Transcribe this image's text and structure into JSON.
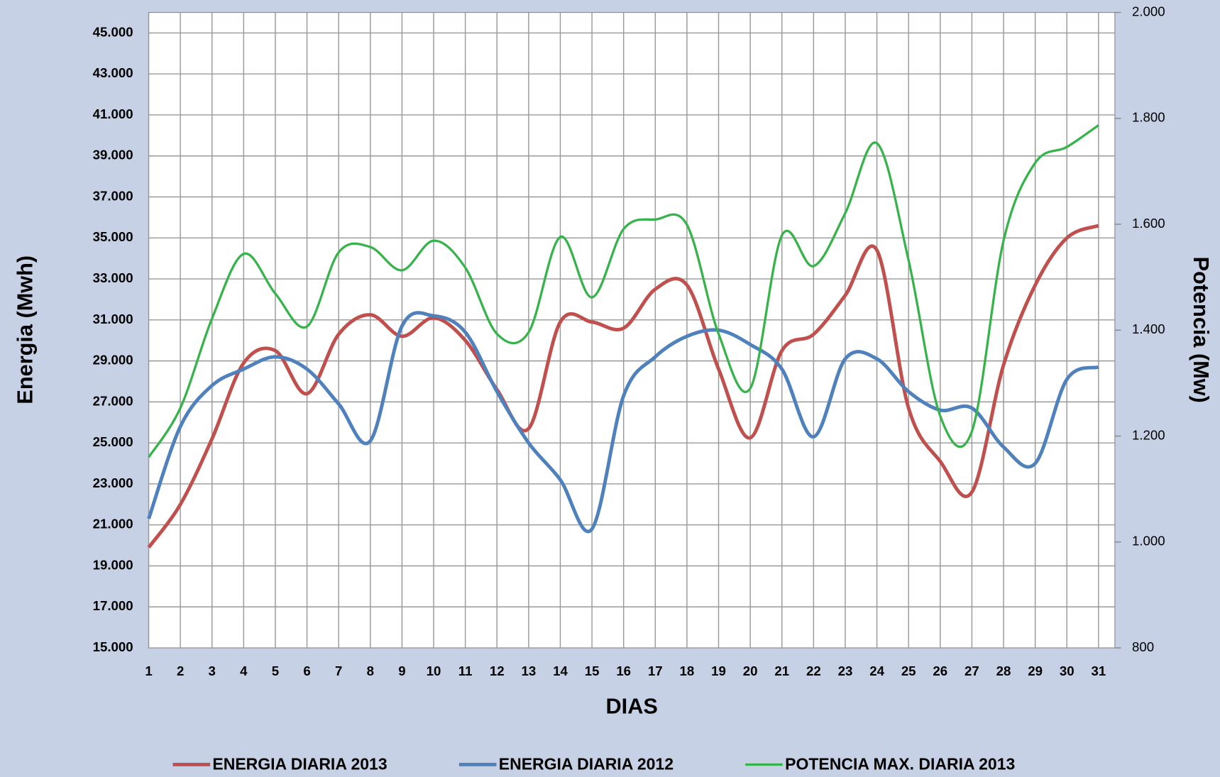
{
  "chart_data": {
    "type": "line",
    "x_label": "DIAS",
    "y_label": "Energia (Mwh)",
    "y2_label": "Potencia (Mw)",
    "categories": [
      "1",
      "2",
      "3",
      "4",
      "5",
      "6",
      "7",
      "8",
      "9",
      "10",
      "11",
      "12",
      "13",
      "14",
      "15",
      "16",
      "17",
      "18",
      "19",
      "20",
      "21",
      "22",
      "23",
      "24",
      "25",
      "26",
      "27",
      "28",
      "29",
      "30",
      "31"
    ],
    "series": [
      {
        "name": "ENERGIA DIARIA 2013",
        "color": "#c0504d",
        "values": [
          19900,
          22000,
          25200,
          28900,
          29500,
          27400,
          30300,
          31250,
          30200,
          31100,
          30000,
          27600,
          25700,
          30900,
          30900,
          30600,
          32500,
          32700,
          28600,
          25250,
          29500,
          30300,
          32200,
          34400,
          26700,
          24100,
          22600,
          28800,
          32700,
          35000,
          35600
        ]
      },
      {
        "name": "ENERGIA DIARIA 2012",
        "color": "#4f81bd",
        "values": [
          21300,
          25800,
          27800,
          28600,
          29200,
          28600,
          26900,
          25100,
          30700,
          31200,
          30400,
          27500,
          25000,
          23200,
          20800,
          27300,
          29200,
          30200,
          30500,
          29800,
          28600,
          25300,
          29100,
          29100,
          27500,
          26600,
          26700,
          24800,
          24000,
          28100,
          28700
        ]
      },
      {
        "name": "POTENCIA MAX. DIARIA 2013",
        "color": "#36b34a",
        "axis": "y2",
        "values": [
          1160,
          1253,
          1422,
          1544,
          1469,
          1407,
          1547,
          1557,
          1513,
          1569,
          1518,
          1393,
          1396,
          1576,
          1462,
          1591,
          1609,
          1599,
          1393,
          1290,
          1579,
          1521,
          1621,
          1753,
          1532,
          1238,
          1209,
          1569,
          1716,
          1746,
          1787
        ]
      }
    ],
    "ylim": [
      15000,
      46000
    ],
    "yticks": [
      {
        "value": 15000,
        "label": "15.000"
      },
      {
        "value": 17000,
        "label": "17.000"
      },
      {
        "value": 19000,
        "label": "19.000"
      },
      {
        "value": 21000,
        "label": "21.000"
      },
      {
        "value": 23000,
        "label": "23.000"
      },
      {
        "value": 25000,
        "label": "25.000"
      },
      {
        "value": 27000,
        "label": "27.000"
      },
      {
        "value": 29000,
        "label": "29.000"
      },
      {
        "value": 31000,
        "label": "31.000"
      },
      {
        "value": 33000,
        "label": "33.000"
      },
      {
        "value": 35000,
        "label": "35.000"
      },
      {
        "value": 37000,
        "label": "37.000"
      },
      {
        "value": 39000,
        "label": "39.000"
      },
      {
        "value": 41000,
        "label": "41.000"
      },
      {
        "value": 43000,
        "label": "43.000"
      },
      {
        "value": 45000,
        "label": "45.000"
      }
    ],
    "y2lim": [
      800,
      2000
    ],
    "y2ticks": [
      800,
      {
        "value": 1000,
        "label": "1.000"
      },
      {
        "value": 1200,
        "label": "1.200"
      },
      {
        "value": 1400,
        "label": "1.400"
      },
      {
        "value": 1600,
        "label": "1.600"
      },
      {
        "value": 1800,
        "label": "1.800"
      },
      {
        "value": 2000,
        "label": "2.000"
      }
    ],
    "grid": true,
    "legend": "bottom"
  }
}
